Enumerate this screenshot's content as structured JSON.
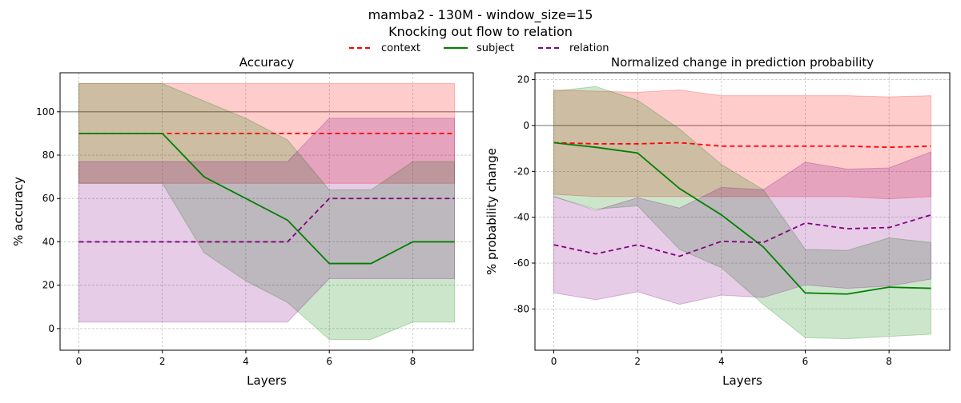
{
  "figure": {
    "title_line1": "mamba2 - 130M - window_size=15",
    "title_line2": "Knocking out flow to relation"
  },
  "legend": [
    {
      "label": "context",
      "color": "#ff0000",
      "dash": true
    },
    {
      "label": "subject",
      "color": "#008000",
      "dash": false
    },
    {
      "label": "relation",
      "color": "#800080",
      "dash": true
    }
  ],
  "chart_data": [
    {
      "type": "line",
      "title": "Accuracy",
      "xlabel": "Layers",
      "ylabel": "% accuracy",
      "xlim": [
        -0.45,
        9.45
      ],
      "ylim": [
        -10,
        118
      ],
      "xticks": [
        0,
        2,
        4,
        6,
        8
      ],
      "yticks": [
        0,
        20,
        40,
        60,
        80,
        100
      ],
      "grid": true,
      "reference_line": 100,
      "x": [
        0,
        1,
        2,
        3,
        4,
        5,
        6,
        7,
        8,
        9
      ],
      "series": [
        {
          "name": "context",
          "color": "#ff0000",
          "dash": true,
          "values": [
            90,
            90,
            90,
            90,
            90,
            90,
            90,
            90,
            90,
            90
          ],
          "band_low": [
            67,
            67,
            67,
            67,
            67,
            67,
            67,
            67,
            67,
            67
          ],
          "band_high": [
            113,
            113,
            113,
            113,
            113,
            113,
            113,
            113,
            113,
            113
          ]
        },
        {
          "name": "subject",
          "color": "#008000",
          "dash": false,
          "values": [
            90,
            90,
            90,
            70,
            60,
            50,
            30,
            30,
            40,
            40
          ],
          "band_low": [
            67,
            67,
            67,
            35,
            22,
            12,
            -5,
            -5,
            3,
            3
          ],
          "band_high": [
            113,
            113,
            113,
            105,
            97,
            87,
            64,
            64,
            77,
            77
          ]
        },
        {
          "name": "relation",
          "color": "#800080",
          "dash": true,
          "values": [
            40,
            40,
            40,
            40,
            40,
            40,
            60,
            60,
            60,
            60
          ],
          "band_low": [
            3,
            3,
            3,
            3,
            3,
            3,
            23,
            23,
            23,
            23
          ],
          "band_high": [
            77,
            77,
            77,
            77,
            77,
            77,
            97,
            97,
            97,
            97
          ]
        }
      ]
    },
    {
      "type": "line",
      "title": "Normalized change in prediction probability",
      "xlabel": "Layers",
      "ylabel": "% probability change",
      "xlim": [
        -0.45,
        9.45
      ],
      "ylim": [
        -98,
        23
      ],
      "xticks": [
        0,
        2,
        4,
        6,
        8
      ],
      "yticks": [
        -80,
        -60,
        -40,
        -20,
        0,
        20
      ],
      "grid": true,
      "reference_line": 0,
      "x": [
        0,
        1,
        2,
        3,
        4,
        5,
        6,
        7,
        8,
        9
      ],
      "series": [
        {
          "name": "context",
          "color": "#ff0000",
          "dash": true,
          "values": [
            -7.5,
            -8,
            -8,
            -7.5,
            -9,
            -9,
            -9,
            -9,
            -9.5,
            -9
          ],
          "band_low": [
            -30,
            -31,
            -31,
            -31,
            -31,
            -31,
            -31,
            -31,
            -32,
            -31
          ],
          "band_high": [
            15.5,
            15,
            14.5,
            15.5,
            13,
            13,
            13,
            13,
            12.5,
            13
          ]
        },
        {
          "name": "subject",
          "color": "#008000",
          "dash": false,
          "values": [
            -7.5,
            -9.5,
            -12,
            -27.5,
            -39,
            -53,
            -73,
            -73.5,
            -70.5,
            -71
          ],
          "band_low": [
            -31,
            -36.5,
            -35,
            -54,
            -62,
            -78,
            -92.5,
            -93,
            -92,
            -91
          ],
          "band_high": [
            15,
            17,
            11,
            -1.5,
            -17,
            -28,
            -54,
            -54.5,
            -49,
            -51
          ]
        },
        {
          "name": "relation",
          "color": "#800080",
          "dash": true,
          "values": [
            -52,
            -56,
            -52,
            -57,
            -50.5,
            -51,
            -42.5,
            -45,
            -44.5,
            -39
          ],
          "band_low": [
            -73,
            -76,
            -72.5,
            -78,
            -74,
            -75,
            -69.5,
            -71,
            -70,
            -67
          ],
          "band_high": [
            -31,
            -37,
            -31.5,
            -36,
            -27,
            -28,
            -16,
            -19,
            -18.5,
            -11.5
          ]
        }
      ]
    }
  ]
}
